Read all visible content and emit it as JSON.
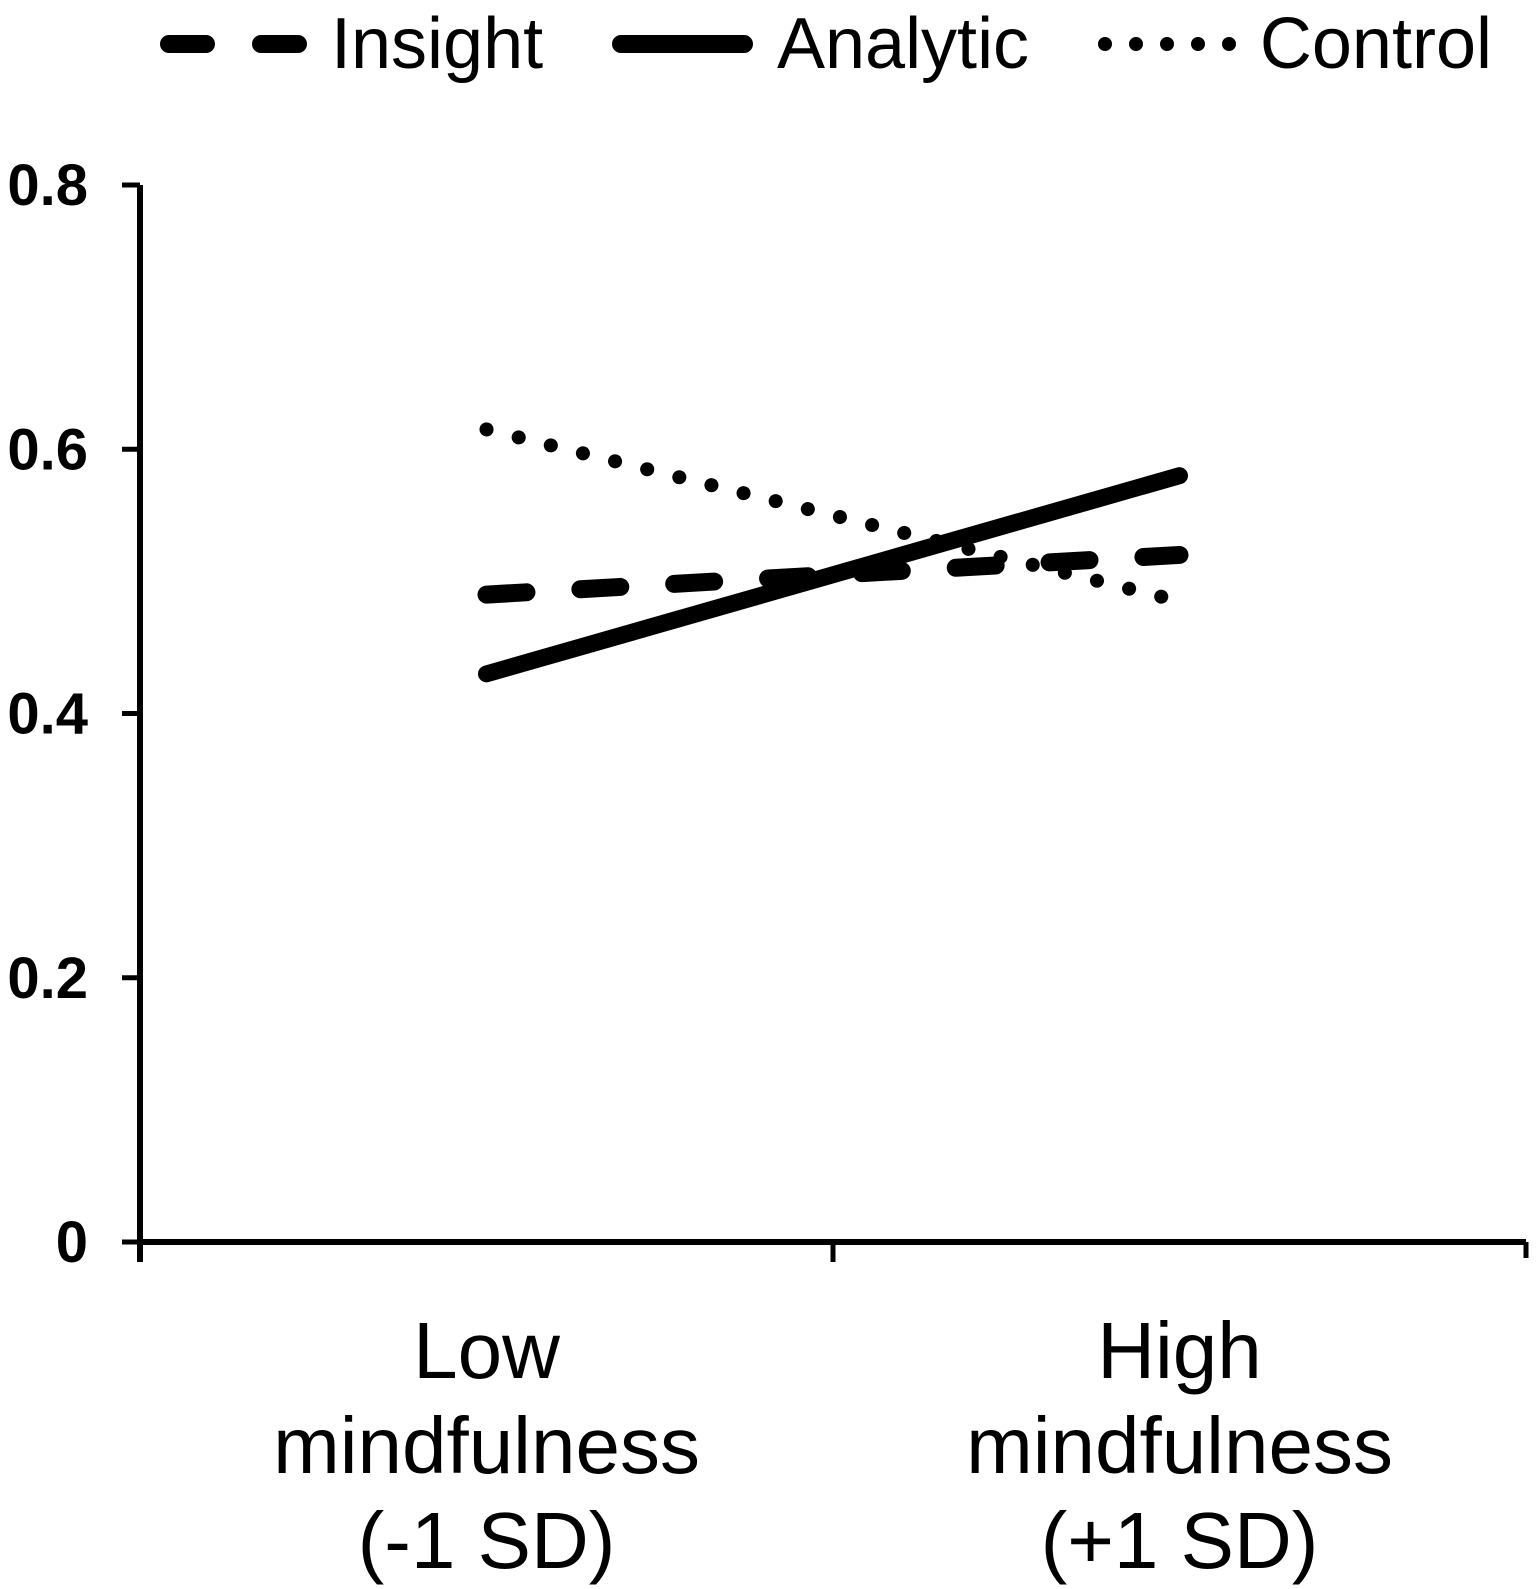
{
  "figure": {
    "background": "#ffffff",
    "line_color": "#000000"
  },
  "chart_data": {
    "type": "line",
    "title": "",
    "xlabel": "",
    "ylabel": "",
    "grid": false,
    "legend_position": "top",
    "categories": [
      "Low mindfulness (-1 SD)",
      "High mindfulness (+1 SD)"
    ],
    "category_label_lines": [
      [
        "Low",
        "mindfulness",
        "(-1 SD)"
      ],
      [
        "High",
        "mindfulness",
        "(+1 SD)"
      ]
    ],
    "series": [
      {
        "name": "Insight",
        "line_style": "dashed",
        "values": [
          0.49,
          0.52
        ]
      },
      {
        "name": "Analytic",
        "line_style": "solid",
        "values": [
          0.43,
          0.58
        ]
      },
      {
        "name": "Control",
        "line_style": "dotted",
        "values": [
          0.615,
          0.485
        ]
      }
    ],
    "ylim": [
      0,
      0.8
    ],
    "yticks": [
      0,
      0.2,
      0.4,
      0.6,
      0.8
    ],
    "ytick_labels": [
      "0",
      "0.2",
      "0.4",
      "0.6",
      "0.8"
    ]
  }
}
